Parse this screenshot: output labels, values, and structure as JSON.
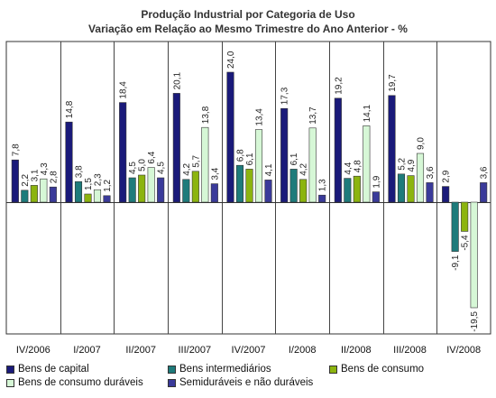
{
  "chart_data": {
    "type": "bar",
    "title": "Produção Industrial por Categoria de Uso",
    "subtitle": "Variação em Relação ao Mesmo Trimestre do Ano Anterior - %",
    "categories": [
      "IV/2006",
      "I/2007",
      "II/2007",
      "III/2007",
      "IV/2007",
      "I/2008",
      "II/2008",
      "III/2008",
      "IV/2008"
    ],
    "series": [
      {
        "name": "Bens de capital",
        "color": "#1a1a7a",
        "values": [
          7.8,
          14.8,
          18.4,
          20.1,
          24.0,
          17.3,
          19.2,
          19.7,
          2.9
        ]
      },
      {
        "name": "Bens intermediários",
        "color": "#1e7b7b",
        "values": [
          2.2,
          3.8,
          4.5,
          4.2,
          6.8,
          6.1,
          4.4,
          5.2,
          -9.1
        ]
      },
      {
        "name": "Bens de consumo",
        "color": "#8cb40f",
        "values": [
          3.1,
          1.5,
          5.0,
          5.7,
          6.1,
          4.2,
          4.8,
          4.9,
          -5.4
        ]
      },
      {
        "name": "Bens de consumo duráveis",
        "color": "#d6f7d6",
        "values": [
          4.3,
          2.3,
          6.4,
          13.8,
          13.4,
          13.7,
          14.1,
          9.0,
          -19.5
        ]
      },
      {
        "name": "Semiduráveis e não duráveis",
        "color": "#3a3a9a",
        "values": [
          2.8,
          1.2,
          4.5,
          3.4,
          4.1,
          1.3,
          1.9,
          3.6,
          3.6
        ]
      }
    ],
    "value_labels": [
      [
        "7,8",
        "14,8",
        "18,4",
        "20,1",
        "24,0",
        "17,3",
        "19,2",
        "19,7",
        "2,9"
      ],
      [
        "2,2",
        "3,8",
        "4,5",
        "4,2",
        "6,8",
        "6,1",
        "4,4",
        "5,2",
        "-9,1"
      ],
      [
        "3,1",
        "1,5",
        "5,0",
        "5,7",
        "6,1",
        "4,2",
        "4,8",
        "4,9",
        "-5,4"
      ],
      [
        "4,3",
        "2,3",
        "6,4",
        "13,8",
        "13,4",
        "13,7",
        "14,1",
        "9,0",
        "-19,5"
      ],
      [
        "2,8",
        "1,2",
        "4,5",
        "3,4",
        "4,1",
        "1,3",
        "1,9",
        "3,6",
        "3,6"
      ]
    ],
    "ylim": [
      -23,
      27
    ],
    "grid": false,
    "legend": "bottom"
  }
}
